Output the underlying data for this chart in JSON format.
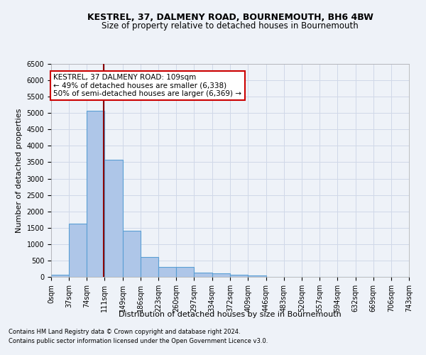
{
  "title_line1": "KESTREL, 37, DALMENY ROAD, BOURNEMOUTH, BH6 4BW",
  "title_line2": "Size of property relative to detached houses in Bournemouth",
  "xlabel": "Distribution of detached houses by size in Bournemouth",
  "ylabel": "Number of detached properties",
  "footnote1": "Contains HM Land Registry data © Crown copyright and database right 2024.",
  "footnote2": "Contains public sector information licensed under the Open Government Licence v3.0.",
  "bar_edges": [
    0,
    37,
    74,
    111,
    149,
    186,
    223,
    260,
    297,
    334,
    372,
    409,
    446,
    483,
    520,
    557,
    594,
    632,
    669,
    706,
    743
  ],
  "bar_heights": [
    70,
    1630,
    5080,
    3580,
    1400,
    610,
    300,
    295,
    140,
    110,
    75,
    50,
    0,
    0,
    0,
    0,
    0,
    0,
    0,
    0
  ],
  "bar_color": "#aec6e8",
  "bar_edge_color": "#5a9fd4",
  "bar_linewidth": 0.8,
  "vline_x": 109,
  "vline_color": "#8b0000",
  "vline_linewidth": 1.5,
  "annotation_text": "KESTREL, 37 DALMENY ROAD: 109sqm\n← 49% of detached houses are smaller (6,338)\n50% of semi-detached houses are larger (6,369) →",
  "annotation_box_color": "#ffffff",
  "annotation_box_edge": "#cc0000",
  "ylim": [
    0,
    6500
  ],
  "xlim": [
    0,
    743
  ],
  "yticks": [
    0,
    500,
    1000,
    1500,
    2000,
    2500,
    3000,
    3500,
    4000,
    4500,
    5000,
    5500,
    6000,
    6500
  ],
  "xtick_labels": [
    "0sqm",
    "37sqm",
    "74sqm",
    "111sqm",
    "149sqm",
    "186sqm",
    "223sqm",
    "260sqm",
    "297sqm",
    "334sqm",
    "372sqm",
    "409sqm",
    "446sqm",
    "483sqm",
    "520sqm",
    "557sqm",
    "594sqm",
    "632sqm",
    "669sqm",
    "706sqm",
    "743sqm"
  ],
  "grid_color": "#d0d8e8",
  "bg_color": "#eef2f8",
  "axes_bg_color": "#eef2f8",
  "title_fontsize": 9,
  "subtitle_fontsize": 8.5,
  "label_fontsize": 8,
  "tick_fontsize": 7,
  "annot_fontsize": 7.5,
  "footnote_fontsize": 6
}
